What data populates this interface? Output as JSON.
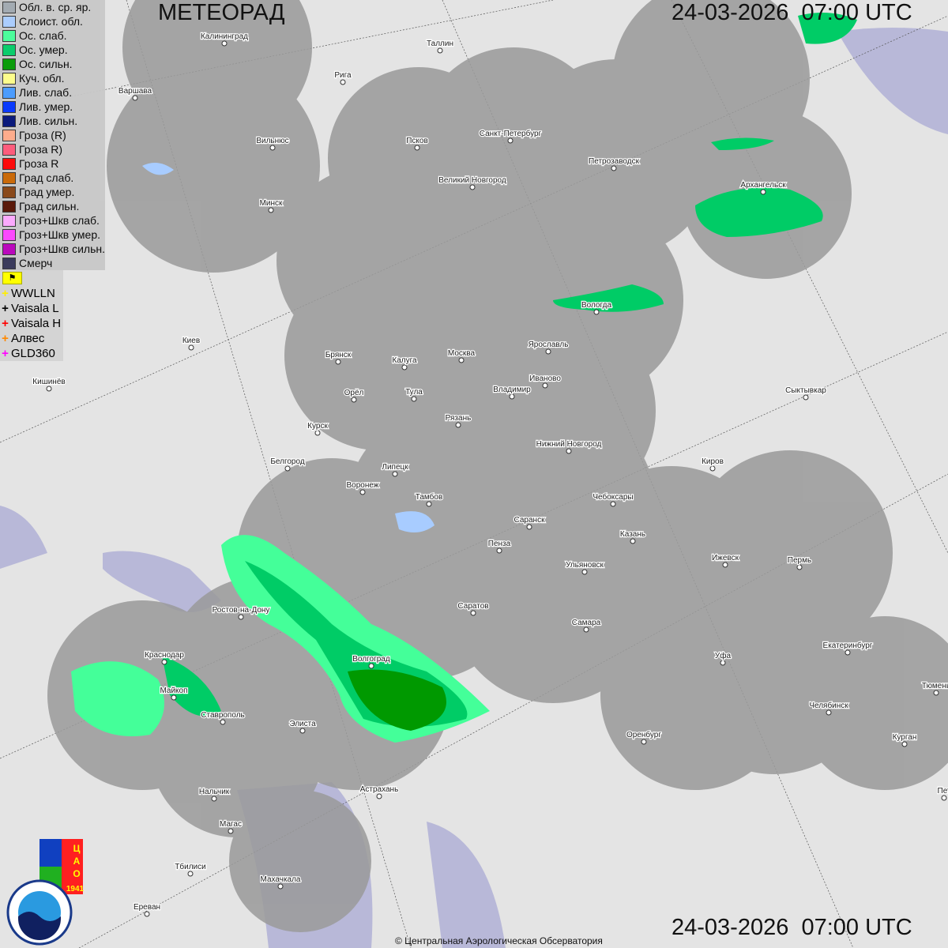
{
  "header": {
    "title": "МЕТЕОРАД",
    "timestamp_top": "24-03-2026  07:00 UTC",
    "timestamp_bottom": "24-03-2026  07:00 UTC"
  },
  "legend": [
    {
      "label": "Обл. в. ср. яр.",
      "color": "#a0a8b0"
    },
    {
      "label": "Слоист. обл.",
      "color": "#a8ccff"
    },
    {
      "label": "Ос. слаб.",
      "color": "#44ff99"
    },
    {
      "label": "Ос. умер.",
      "color": "#00cc66"
    },
    {
      "label": "Ос. сильн.",
      "color": "#009900"
    },
    {
      "label": "Куч. обл.",
      "color": "#ffff88"
    },
    {
      "label": "Лив. слаб.",
      "color": "#4499ff"
    },
    {
      "label": "Лив. умер.",
      "color": "#0033ff"
    },
    {
      "label": "Лив. сильн.",
      "color": "#001177"
    },
    {
      "label": "Гроза (R)",
      "color": "#ffaa88"
    },
    {
      "label": "Гроза R)",
      "color": "#ff5577"
    },
    {
      "label": "Гроза R",
      "color": "#ff0000"
    },
    {
      "label": "Град слаб.",
      "color": "#cc6600"
    },
    {
      "label": "Град умер.",
      "color": "#884411"
    },
    {
      "label": "Град сильн.",
      "color": "#551100"
    },
    {
      "label": "Гроз+Шкв слаб.",
      "color": "#ffaaff"
    },
    {
      "label": "Гроз+Шкв умер.",
      "color": "#ff44ff"
    },
    {
      "label": "Гроз+Шкв сильн.",
      "color": "#bb00bb"
    },
    {
      "label": "Смерч",
      "color": "#333355"
    }
  ],
  "lightning": [
    {
      "label": "WWLLN",
      "color": "#ffee00"
    },
    {
      "label": "Vaisala L",
      "color": "#000000"
    },
    {
      "label": "Vaisala H",
      "color": "#ff0000"
    },
    {
      "label": "Алвес",
      "color": "#ff8800"
    },
    {
      "label": "GLD360",
      "color": "#ff00ff"
    }
  ],
  "toggle_icon": "flag-icon",
  "cities": [
    "Калининград",
    "Таллин",
    "Рига",
    "Варшава",
    "Санкт-Петербург",
    "Псков",
    "Вильнюс",
    "Петрозаводск",
    "Великий Новгород",
    "Архангельск",
    "Минск",
    "Вологда",
    "Ярославль",
    "Киев",
    "Москва",
    "Калуга",
    "Брянск",
    "Иваново",
    "Кишинёв",
    "Владимир",
    "Орёл",
    "Тула",
    "Сыктывкар",
    "Рязань",
    "Курск",
    "Нижний Новгород",
    "Белгород",
    "Киров",
    "Липецк",
    "Воронеж",
    "Тамбов",
    "Чебоксары",
    "Саранск",
    "Казань",
    "Пенза",
    "Ижевск",
    "Пермь",
    "Ульяновск",
    "Ростов-на-Дону",
    "Саратов",
    "Самара",
    "Екатеринбург",
    "Краснодар",
    "Уфа",
    "Волгоград",
    "Тюмень",
    "Майкоп",
    "Челябинск",
    "Ставрополь",
    "Элиста",
    "Оренбург",
    "Курган",
    "Астрахань",
    "Нальчик",
    "Магас",
    "Тбилиси",
    "Махачкала",
    "Ереван",
    "Пет"
  ],
  "logos": {
    "cao": "ЦАО 1941",
    "roshydromet": "РОСГИДРОМЕТ ROSHYDROMET"
  },
  "copyright": "© Центральная Аэрологическая Обсерватория"
}
